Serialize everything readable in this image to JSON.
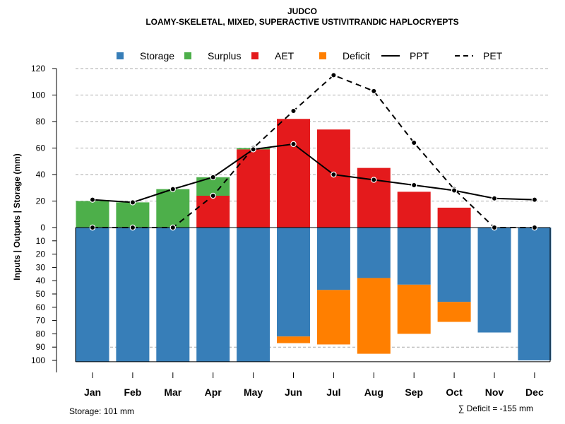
{
  "chart_data": {
    "type": "bar",
    "title": "JUDCO",
    "subtitle": "LOAMY-SKELETAL, MIXED, SUPERACTIVE USTIVITRANDIC HAPLOCRYEPTS",
    "ylabel": "Inputs | Outputs | Storage    (mm)",
    "categories": [
      "Jan",
      "Feb",
      "Mar",
      "Apr",
      "May",
      "Jun",
      "Jul",
      "Aug",
      "Sep",
      "Oct",
      "Nov",
      "Dec"
    ],
    "upper_ticks": [
      "0",
      "20",
      "40",
      "60",
      "80",
      "100",
      "120"
    ],
    "lower_ticks": [
      "10",
      "20",
      "30",
      "40",
      "50",
      "60",
      "70",
      "80",
      "90",
      "100"
    ],
    "ylim_upper": [
      0,
      120
    ],
    "ylim_lower": [
      0,
      101
    ],
    "legend": [
      {
        "label": "Storage",
        "kind": "box",
        "color": "#377eb8"
      },
      {
        "label": "Surplus",
        "kind": "box",
        "color": "#4daf4a"
      },
      {
        "label": "AET",
        "kind": "box",
        "color": "#e41a1c"
      },
      {
        "label": "Deficit",
        "kind": "box",
        "color": "#ff7f00"
      },
      {
        "label": "PPT",
        "kind": "solid"
      },
      {
        "label": "PET",
        "kind": "dashed"
      }
    ],
    "series": {
      "aet": [
        0,
        0,
        0,
        24,
        59,
        82,
        74,
        45,
        27,
        15,
        0,
        0
      ],
      "surplus": [
        20,
        19,
        29,
        14,
        1,
        0,
        0,
        0,
        0,
        0,
        0,
        0
      ],
      "storage": [
        101,
        101,
        101,
        101,
        101,
        82,
        47,
        38,
        43,
        56,
        79,
        100
      ],
      "deficit": [
        0,
        0,
        0,
        0,
        0,
        5,
        41,
        57,
        37,
        15,
        0,
        0
      ],
      "ppt": [
        21,
        19,
        29,
        38,
        59,
        63,
        40,
        36,
        32,
        28,
        22,
        21
      ],
      "pet": [
        0,
        0,
        0,
        24,
        60,
        88,
        115,
        103,
        64,
        29,
        0,
        0
      ]
    },
    "colors": {
      "storage": "#377eb8",
      "surplus": "#4daf4a",
      "aet": "#e41a1c",
      "deficit": "#ff7f00",
      "grid": "#aaaaaa"
    },
    "storage_note": "Storage: 101 mm",
    "deficit_note": "∑ Deficit = -155 mm"
  }
}
